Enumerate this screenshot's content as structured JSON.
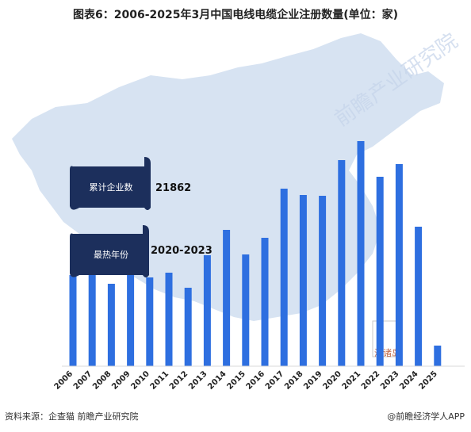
{
  "title": "图表6：2006-2025年3月中国电线电缆企业注册数量(单位：家)",
  "callouts": [
    {
      "label": "累计企业数",
      "value": "21862"
    },
    {
      "label": "最热年份",
      "value": "2020-2023"
    }
  ],
  "watermark": "前瞻产业研究院",
  "map_label": "海诸岛",
  "footer": {
    "source": "资料来源：企查猫 前瞻产业研究院",
    "brand": "@前瞻经济学人APP"
  },
  "colors": {
    "bar": "#2e6fe0",
    "map": "#d7e3f2",
    "callout": "#1c2f5c"
  },
  "chart_data": {
    "type": "bar",
    "title": "图表6：2006-2025年3月中国电线电缆企业注册数量(单位：家)",
    "categories": [
      "2006",
      "2007",
      "2008",
      "2009",
      "2010",
      "2011",
      "2012",
      "2013",
      "2014",
      "2015",
      "2016",
      "2017",
      "2018",
      "2019",
      "2020",
      "2021",
      "2022",
      "2023",
      "2024",
      "2025"
    ],
    "values": [
      575,
      610,
      520,
      600,
      560,
      590,
      495,
      700,
      860,
      705,
      810,
      1120,
      1080,
      1075,
      1300,
      1420,
      1195,
      1275,
      880,
      130
    ],
    "ylim": [
      0,
      1500
    ],
    "grid": false
  }
}
